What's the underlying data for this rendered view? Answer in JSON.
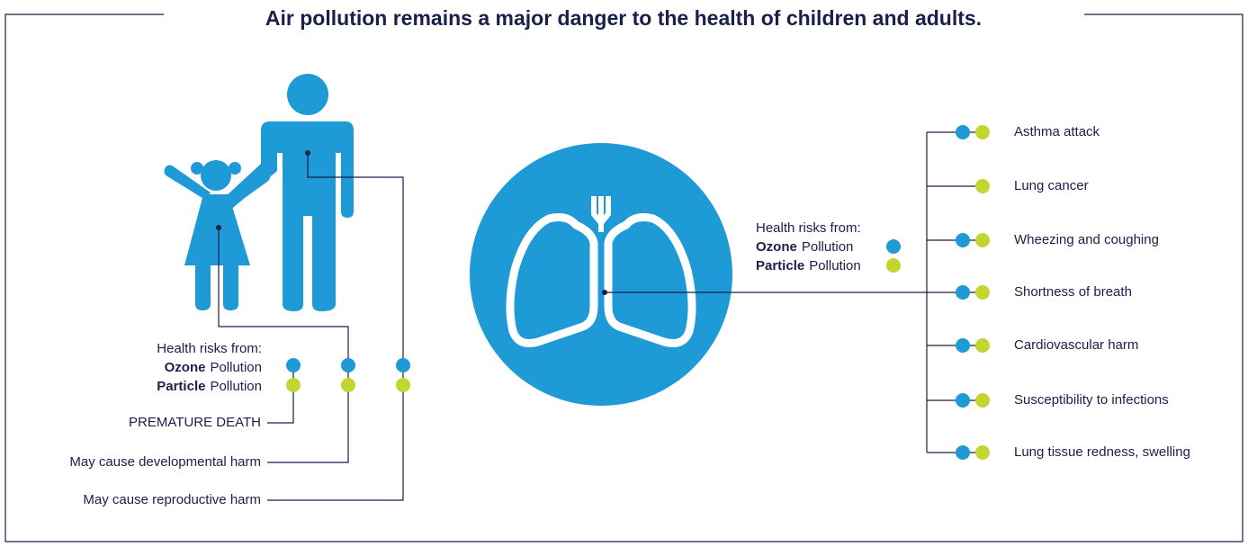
{
  "title": "Air pollution remains a major danger to the health of children and adults.",
  "colors": {
    "ozone": "#1e9ad6",
    "particle": "#c3d52f"
  },
  "people_panel": {
    "legend": {
      "heading": "Health risks from:",
      "ozone": {
        "bold": "Ozone",
        "rest": "Pollution"
      },
      "particle": {
        "bold": "Particle",
        "rest": "Pollution"
      }
    },
    "outcomes": [
      {
        "label": "PREMATURE DEATH",
        "ozone": true,
        "particle": true
      },
      {
        "label": "May cause developmental harm",
        "ozone": true,
        "particle": true
      },
      {
        "label": "May cause reproductive harm",
        "ozone": true,
        "particle": true
      }
    ]
  },
  "lungs_panel": {
    "legend": {
      "heading": "Health risks from:",
      "ozone": {
        "bold": "Ozone",
        "rest": "Pollution"
      },
      "particle": {
        "bold": "Particle",
        "rest": "Pollution"
      }
    },
    "effects": [
      {
        "label": "Asthma attack",
        "ozone": true,
        "particle": true
      },
      {
        "label": "Lung cancer",
        "ozone": false,
        "particle": true
      },
      {
        "label": "Wheezing and coughing",
        "ozone": true,
        "particle": true
      },
      {
        "label": "Shortness of breath",
        "ozone": true,
        "particle": true
      },
      {
        "label": "Cardiovascular harm",
        "ozone": true,
        "particle": true
      },
      {
        "label": "Susceptibility to infections",
        "ozone": true,
        "particle": true
      },
      {
        "label": "Lung tissue redness, swelling",
        "ozone": true,
        "particle": true
      }
    ]
  }
}
